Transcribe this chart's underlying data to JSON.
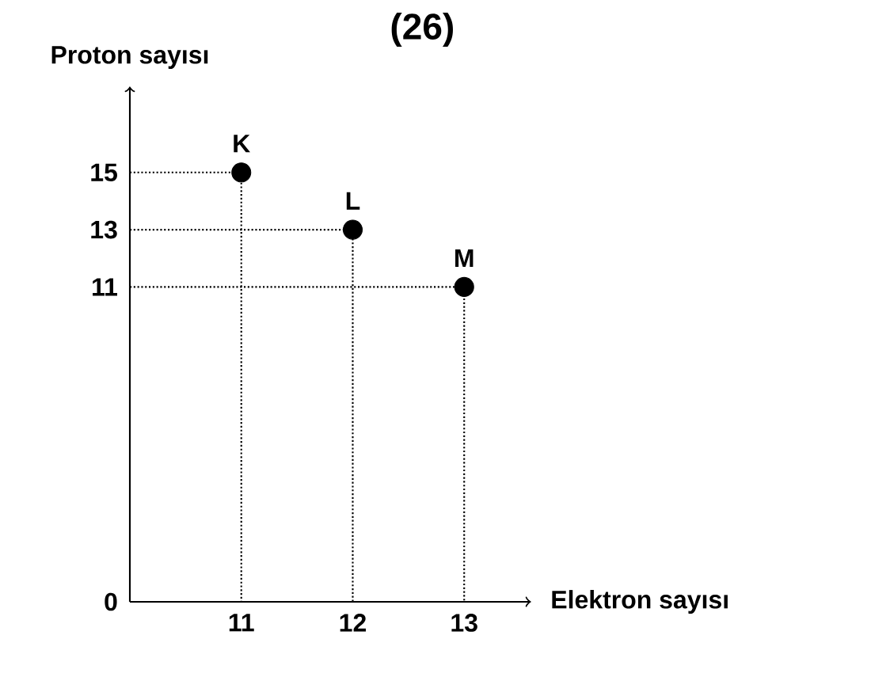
{
  "chart_data": {
    "type": "scatter",
    "title": "(26)",
    "xlabel": "Elektron sayısı",
    "ylabel": "Proton sayısı",
    "x": [
      11,
      12,
      13
    ],
    "series": [
      {
        "marker": "circle",
        "color": "#000000",
        "values": [
          15,
          13,
          11
        ]
      },
      {
        "type": "line",
        "line_style": "dotted",
        "marker": "none",
        "color": "#000000",
        "x": [
          10,
          11,
          11
        ],
        "values": [
          15,
          15,
          0
        ]
      },
      {
        "type": "line",
        "line_style": "dotted",
        "marker": "none",
        "color": "#000000",
        "x": [
          10,
          12,
          12
        ],
        "values": [
          13,
          13,
          0
        ]
      },
      {
        "type": "line",
        "line_style": "dotted",
        "marker": "none",
        "color": "#000000",
        "x": [
          10,
          13,
          13
        ],
        "values": [
          11,
          11,
          0
        ]
      }
    ],
    "xlim": [
      10,
      13.6
    ],
    "ylim": [
      0,
      18
    ],
    "xticks": [
      11,
      12,
      13
    ],
    "yticks": [
      0,
      11,
      13,
      15
    ],
    "grid": false,
    "annotations": [
      {
        "text": "K",
        "x": 11,
        "y": 15
      },
      {
        "text": "L",
        "x": 12,
        "y": 13
      },
      {
        "text": "M",
        "x": 13,
        "y": 11
      }
    ]
  }
}
